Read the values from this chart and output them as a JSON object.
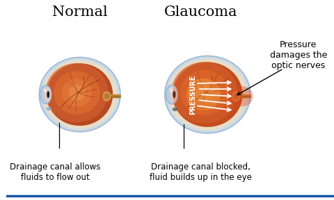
{
  "title_normal": "Normal",
  "title_glaucoma": "Glaucoma",
  "label_normal": "Drainage canal allows\nfluids to flow out",
  "label_glaucoma": "Drainage canal blocked,\nfluid builds up in the eye",
  "label_pressure_note": "Pressure\ndamages the\noptic nerves",
  "label_pressure_text": "PRESSURE",
  "bg_color": "#ffffff",
  "title_fontsize": 15,
  "label_fontsize": 8.5,
  "pressure_note_fontsize": 9.0
}
